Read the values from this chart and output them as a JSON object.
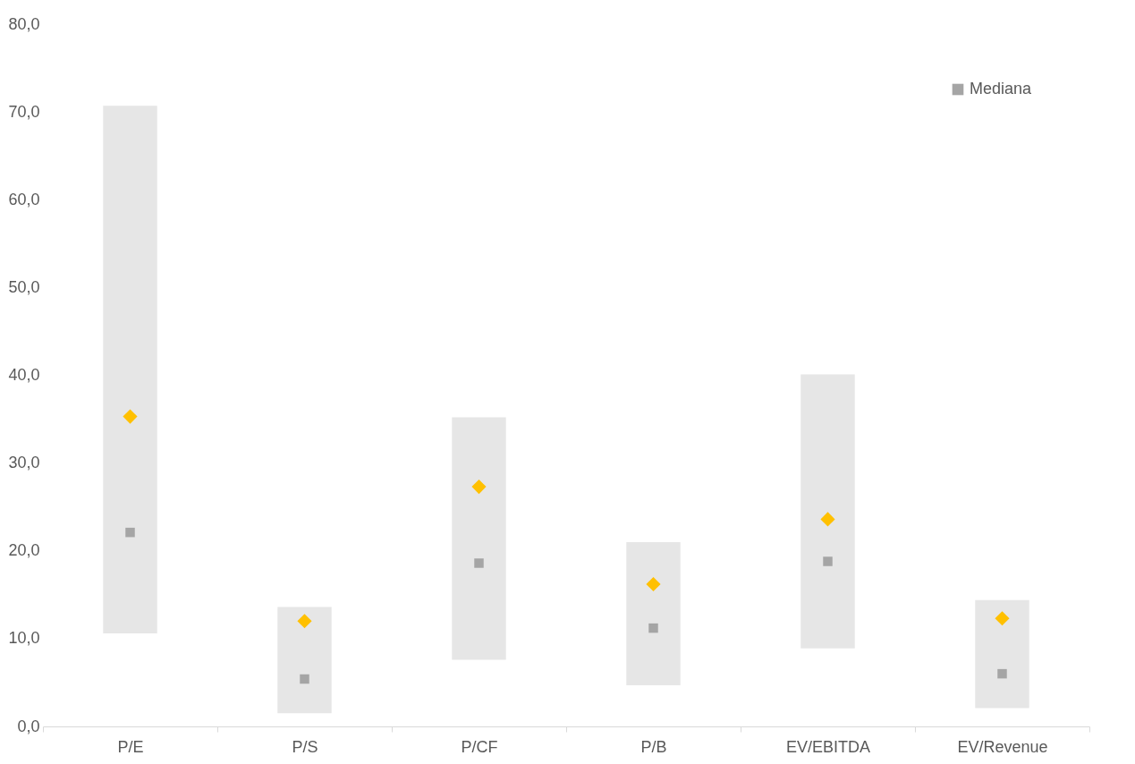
{
  "chart_data": {
    "type": "bar",
    "categories": [
      "P/E",
      "P/S",
      "P/CF",
      "P/B",
      "EV/EBITDA",
      "EV/Revenue"
    ],
    "ylim": [
      0,
      80
    ],
    "yticks": [
      {
        "value": 0,
        "label": "0,0"
      },
      {
        "value": 10,
        "label": "10,0"
      },
      {
        "value": 20,
        "label": "20,0"
      },
      {
        "value": 30,
        "label": "30,0"
      },
      {
        "value": 40,
        "label": "40,0"
      },
      {
        "value": 50,
        "label": "50,0"
      },
      {
        "value": 60,
        "label": "60,0"
      },
      {
        "value": 70,
        "label": "70,0"
      },
      {
        "value": 80,
        "label": "80,0"
      }
    ],
    "grid": false,
    "legend": "top right",
    "series": [
      {
        "type": "bar",
        "color": "#e6e6e6",
        "base": [
          10.6,
          1.5,
          7.6,
          4.7,
          8.9,
          2.1
        ],
        "values": [
          60.1,
          12.1,
          27.6,
          16.3,
          31.2,
          12.3
        ]
      },
      {
        "type": "scatter",
        "name": "Mediana",
        "color": "#a5a5a5",
        "marker": "square",
        "values": [
          22.1,
          5.4,
          18.6,
          11.2,
          18.8,
          6.0
        ]
      },
      {
        "type": "scatter",
        "color": "#ffc000",
        "marker": "diamond",
        "values": [
          35.3,
          12.0,
          27.3,
          16.2,
          23.6,
          12.3
        ]
      }
    ]
  }
}
